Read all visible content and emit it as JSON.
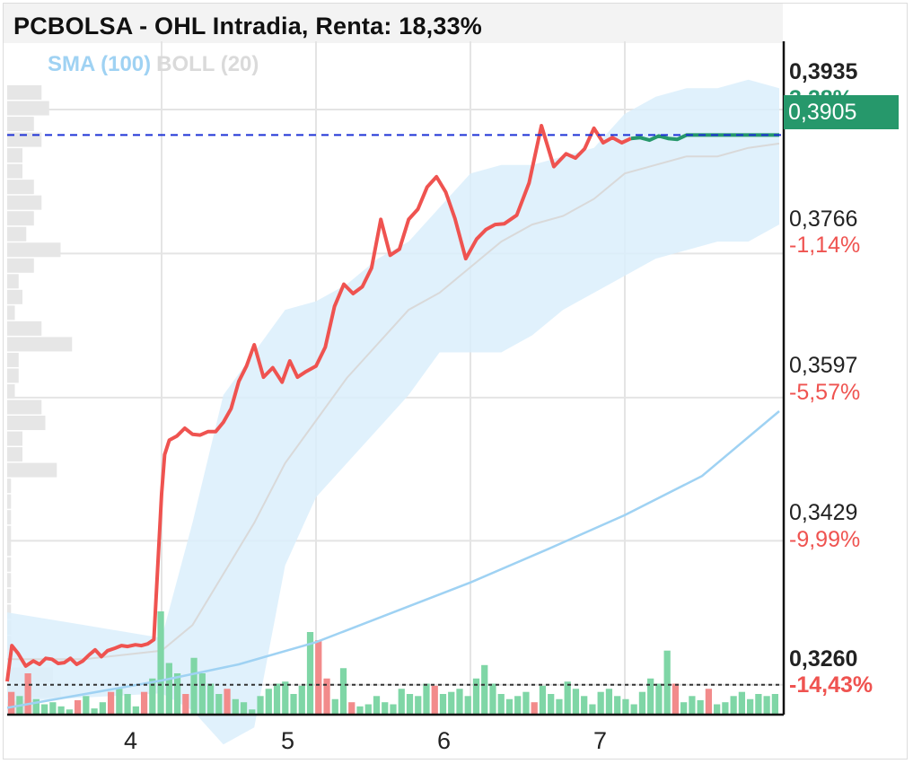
{
  "title": "PCBOLSA - OHL Intradia, Renta: 18,33%",
  "legend": {
    "sma": "SMA (100)",
    "boll": "BOLL (20)"
  },
  "price_axis": {
    "top": {
      "price": "0,3935",
      "pct": "3,28%"
    },
    "last": "0,3905",
    "levels": [
      {
        "price": "0,3766",
        "pct": "-1,14%"
      },
      {
        "price": "0,3597",
        "pct": "-5,57%"
      },
      {
        "price": "0,3429",
        "pct": "-9,99%"
      },
      {
        "price": "0,3260",
        "pct": "-14,43%"
      }
    ]
  },
  "colors": {
    "up": "#26986b",
    "down": "#ef5350",
    "sma": "#9fd2f3",
    "boll_band": "#dbeefb",
    "boll_mid": "#d9d9d9",
    "last_line": "#1f33d6"
  },
  "chart_data": {
    "type": "line",
    "title": "PCBOLSA - OHL Intradia, Renta: 18,33%",
    "xlabel": "",
    "ylabel": "",
    "x_ticks": [
      "4",
      "5",
      "6",
      "7"
    ],
    "ylim": [
      0.3225,
      0.4015
    ],
    "y_ticks": [
      0.326,
      0.3429,
      0.3597,
      0.3766,
      0.3935
    ],
    "reference_lines": {
      "last": 0.3905,
      "previous_close": 0.326
    },
    "price": {
      "x": [
        0,
        0.03,
        0.07,
        0.12,
        0.17,
        0.21,
        0.25,
        0.29,
        0.33,
        0.37,
        0.41,
        0.45,
        0.49,
        0.53,
        0.57,
        0.61,
        0.65,
        0.7,
        0.74,
        0.78,
        0.83,
        0.87,
        0.91,
        0.95,
        1.0,
        1.02,
        1.05,
        1.1,
        1.15,
        1.2,
        1.25,
        1.3,
        1.35,
        1.4,
        1.45,
        1.5,
        1.55,
        1.6,
        1.66,
        1.72,
        1.78,
        1.83,
        1.88,
        1.93,
        2.0,
        2.06,
        2.12,
        2.18,
        2.24,
        2.3,
        2.36,
        2.42,
        2.48,
        2.54,
        2.6,
        2.66,
        2.72,
        2.78,
        2.84,
        2.9,
        2.97,
        3.04,
        3.1,
        3.16,
        3.22,
        3.3,
        3.38,
        3.46,
        3.54,
        3.62,
        3.68,
        3.74,
        3.8,
        3.86,
        3.92,
        3.98,
        4.04,
        4.1,
        4.16,
        4.22,
        4.28,
        4.34,
        4.4,
        4.46,
        4.5,
        4.56,
        4.62,
        4.68,
        4.74,
        4.8,
        4.86,
        4.92,
        5.0
      ],
      "y": [
        0.3264,
        0.3306,
        0.3297,
        0.3282,
        0.3288,
        0.3284,
        0.3291,
        0.329,
        0.3285,
        0.3286,
        0.3291,
        0.3284,
        0.3288,
        0.3295,
        0.3301,
        0.3293,
        0.33,
        0.3303,
        0.3306,
        0.3305,
        0.3307,
        0.3306,
        0.3308,
        0.3313,
        0.3484,
        0.353,
        0.3547,
        0.3552,
        0.3561,
        0.3554,
        0.3553,
        0.3557,
        0.3557,
        0.3568,
        0.3584,
        0.3616,
        0.3634,
        0.3659,
        0.3621,
        0.3632,
        0.3615,
        0.364,
        0.3621,
        0.3627,
        0.3634,
        0.3656,
        0.3704,
        0.373,
        0.3719,
        0.3727,
        0.3749,
        0.3806,
        0.3764,
        0.3771,
        0.3806,
        0.3818,
        0.3844,
        0.3856,
        0.3838,
        0.3807,
        0.376,
        0.3783,
        0.3794,
        0.38,
        0.3801,
        0.3811,
        0.3849,
        0.3916,
        0.3868,
        0.3883,
        0.3878,
        0.3889,
        0.3913,
        0.3896,
        0.3902,
        0.3896,
        0.3901,
        0.3902,
        0.3899,
        0.3904,
        0.3901,
        0.39,
        0.3905,
        0.3905,
        0.3905,
        0.3905,
        0.3905,
        0.3905,
        0.3905,
        0.3905,
        0.3905,
        0.3905,
        0.3905
      ]
    },
    "sma_100": {
      "x": [
        0,
        1,
        1.5,
        2,
        2.5,
        3,
        3.5,
        4,
        4.5,
        5
      ],
      "y": [
        0.3233,
        0.3265,
        0.3284,
        0.331,
        0.3345,
        0.338,
        0.3419,
        0.3459,
        0.3505,
        0.3581
      ]
    },
    "boll_20": {
      "x": [
        0,
        0.5,
        1,
        1.2,
        1.4,
        1.6,
        1.8,
        2.0,
        2.2,
        2.4,
        2.6,
        2.8,
        3.0,
        3.2,
        3.4,
        3.6,
        3.8,
        4.0,
        4.2,
        4.4,
        4.6,
        4.8,
        5.0
      ],
      "upper": [
        0.3345,
        0.333,
        0.3315,
        0.345,
        0.36,
        0.365,
        0.37,
        0.371,
        0.373,
        0.376,
        0.378,
        0.382,
        0.386,
        0.387,
        0.387,
        0.388,
        0.389,
        0.393,
        0.395,
        0.396,
        0.396,
        0.397,
        0.396
      ],
      "middle": [
        0.329,
        0.329,
        0.33,
        0.333,
        0.339,
        0.345,
        0.352,
        0.357,
        0.362,
        0.366,
        0.37,
        0.372,
        0.375,
        0.378,
        0.38,
        0.381,
        0.383,
        0.386,
        0.387,
        0.388,
        0.388,
        0.389,
        0.3895
      ],
      "lower": [
        0.324,
        0.3245,
        0.325,
        0.323,
        0.319,
        0.321,
        0.34,
        0.348,
        0.352,
        0.356,
        0.36,
        0.365,
        0.365,
        0.365,
        0.367,
        0.37,
        0.372,
        0.374,
        0.376,
        0.377,
        0.378,
        0.378,
        0.38
      ]
    },
    "volume": {
      "values": [
        0.22,
        0.18,
        0.4,
        0.15,
        0.1,
        0.12,
        0.08,
        0.05,
        0.14,
        0.18,
        0.06,
        0.12,
        0.22,
        0.25,
        0.2,
        0.08,
        0.22,
        0.35,
        1.0,
        0.5,
        0.4,
        0.2,
        0.55,
        0.4,
        0.3,
        0.2,
        0.25,
        0.15,
        0.12,
        0.05,
        0.18,
        0.25,
        0.3,
        0.32,
        0.2,
        0.28,
        0.8,
        0.72,
        0.35,
        0.15,
        0.45,
        0.12,
        0.08,
        0.1,
        0.18,
        0.12,
        0.1,
        0.25,
        0.2,
        0.18,
        0.3,
        0.28,
        0.2,
        0.22,
        0.25,
        0.18,
        0.35,
        0.48,
        0.3,
        0.2,
        0.15,
        0.18,
        0.22,
        0.12,
        0.28,
        0.2,
        0.15,
        0.32,
        0.25,
        0.18,
        0.1,
        0.22,
        0.25,
        0.18,
        0.15,
        0.1,
        0.22,
        0.35,
        0.3,
        0.62,
        0.3,
        0.12,
        0.18,
        0.14,
        0.25,
        0.1,
        0.12,
        0.18,
        0.22,
        0.15,
        0.2,
        0.18,
        0.2
      ],
      "direction": [
        "d",
        "u",
        "d",
        "u",
        "u",
        "u",
        "u",
        "u",
        "d",
        "u",
        "u",
        "u",
        "d",
        "u",
        "u",
        "u",
        "d",
        "u",
        "u",
        "u",
        "u",
        "d",
        "u",
        "u",
        "u",
        "u",
        "d",
        "u",
        "u",
        "u",
        "u",
        "u",
        "u",
        "u",
        "u",
        "u",
        "u",
        "d",
        "d",
        "u",
        "u",
        "d",
        "u",
        "u",
        "u",
        "u",
        "u",
        "u",
        "u",
        "u",
        "u",
        "d",
        "u",
        "u",
        "u",
        "u",
        "u",
        "u",
        "u",
        "u",
        "u",
        "u",
        "u",
        "d",
        "u",
        "u",
        "u",
        "u",
        "u",
        "u",
        "u",
        "u",
        "u",
        "u",
        "u",
        "u",
        "u",
        "u",
        "u",
        "u",
        "d",
        "u",
        "u",
        "u",
        "d",
        "u",
        "u",
        "u",
        "u",
        "u",
        "u",
        "u",
        "u"
      ]
    },
    "volume_profile": [
      0.45,
      0.55,
      0.35,
      0.45,
      0.2,
      0.2,
      0.35,
      0.45,
      0.35,
      0.25,
      0.7,
      0.35,
      0.15,
      0.2,
      0.1,
      0.45,
      0.85,
      0.15,
      0.15,
      0.1,
      0.45,
      0.5,
      0.2,
      0.2,
      0.65,
      0.05,
      0.05,
      0.05,
      0.05,
      0.05,
      0.05,
      0.05,
      0.05,
      0.05,
      0.05,
      0.05,
      0.05,
      0.6,
      0.7,
      0.4
    ]
  }
}
